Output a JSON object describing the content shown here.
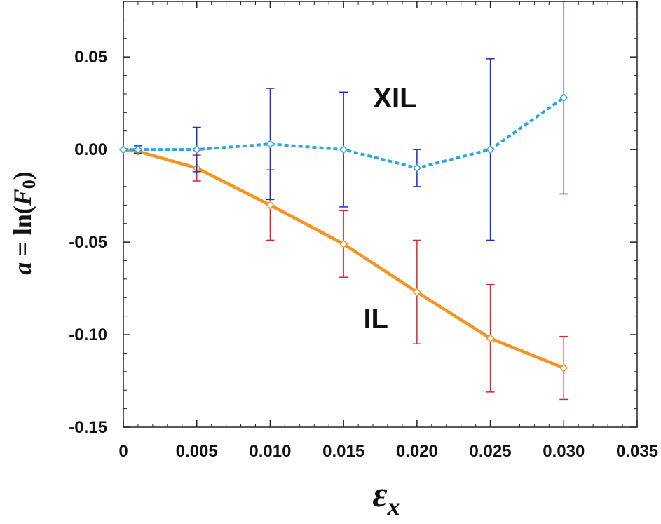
{
  "chart_data": {
    "type": "line",
    "xlabel": "εx",
    "ylabel": "a = ln(F0)",
    "xlim": [
      0,
      0.035
    ],
    "ylim": [
      -0.15,
      0.08
    ],
    "xticks": [
      0,
      0.005,
      0.01,
      0.015,
      0.02,
      0.025,
      0.03,
      0.035
    ],
    "xtick_labels": [
      "0",
      "0.005",
      "0.010",
      "0.015",
      "0.020",
      "0.025",
      "0.030",
      "0.035"
    ],
    "yticks": [
      0.05,
      0,
      -0.05,
      -0.1,
      -0.15
    ],
    "ytick_labels": [
      "0.05",
      "0.00",
      "-0.05",
      "-0.10",
      "-0.15"
    ],
    "grid": false,
    "series": [
      {
        "name": "XIL",
        "line_color": "#29a8e0",
        "error_color": "#1a2fcf",
        "line_style": "dashed",
        "marker": "diamond",
        "x": [
          0,
          0.001,
          0.005,
          0.01,
          0.015,
          0.02,
          0.025,
          0.03
        ],
        "y": [
          0,
          0,
          0,
          0.003,
          0,
          -0.01,
          0,
          0.028
        ],
        "err": [
          0,
          0.002,
          0.012,
          0.03,
          0.031,
          0.01,
          0.049,
          0.052
        ]
      },
      {
        "name": "IL",
        "line_color": "#f7931e",
        "error_color": "#d9262b",
        "line_style": "solid",
        "marker": "diamond",
        "x": [
          0,
          0.001,
          0.005,
          0.01,
          0.015,
          0.02,
          0.025,
          0.03
        ],
        "y": [
          0,
          -0.001,
          -0.01,
          -0.03,
          -0.051,
          -0.077,
          -0.102,
          -0.118
        ],
        "err": [
          0,
          0.001,
          0.007,
          0.019,
          0.018,
          0.028,
          0.029,
          0.017
        ]
      }
    ]
  }
}
